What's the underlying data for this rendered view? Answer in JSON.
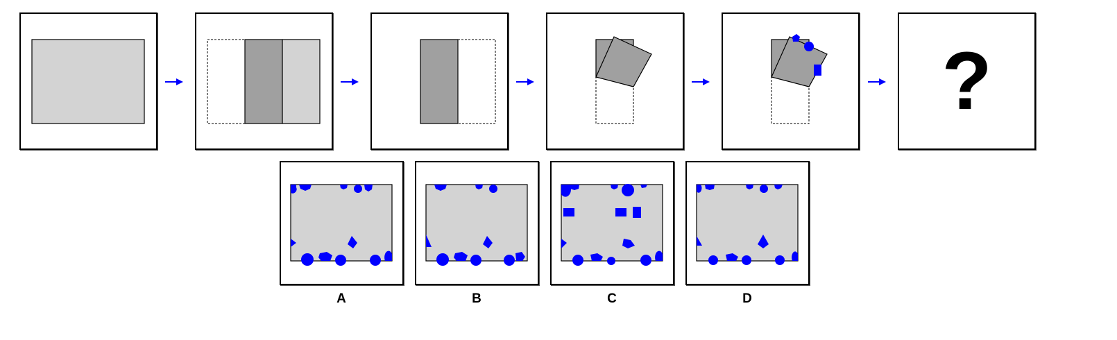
{
  "colors": {
    "paper": "#d3d3d3",
    "fold": "#a0a0a0",
    "punch": "#0000ff",
    "arrow": "#0000ff",
    "border": "#000000"
  },
  "question": {
    "steps": [
      {
        "id": "step-1",
        "icon": "unfolded-paper"
      },
      {
        "id": "step-2",
        "icon": "fold-right-third"
      },
      {
        "id": "step-3",
        "icon": "fold-left-third"
      },
      {
        "id": "step-4",
        "icon": "fold-diagonal"
      },
      {
        "id": "step-5",
        "icon": "punched-holes"
      }
    ],
    "arrow_icon": "right-arrow-icon",
    "answer_mark": "?"
  },
  "options": [
    {
      "label": "A"
    },
    {
      "label": "B"
    },
    {
      "label": "C"
    },
    {
      "label": "D"
    }
  ]
}
